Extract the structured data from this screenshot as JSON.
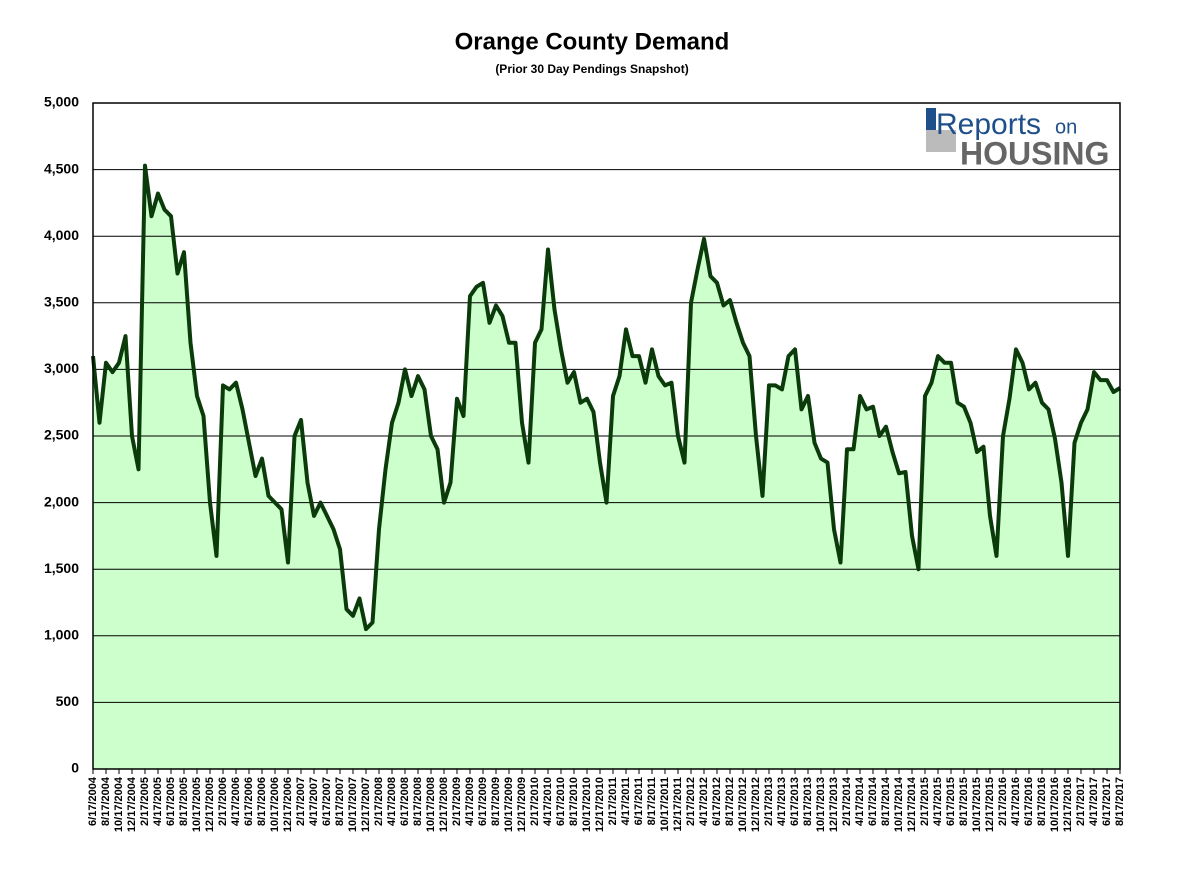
{
  "chart_data": {
    "type": "area",
    "title": "Orange County Demand",
    "subtitle": "(Prior 30 Day Pendings Snapshot)",
    "logo": {
      "word1": "Reports",
      "word2": "on",
      "word3": "HOUSING"
    },
    "categories": [
      "6/17/2004",
      null,
      "8/17/2004",
      null,
      "10/17/2004",
      null,
      "12/17/2004",
      null,
      "2/17/2005",
      null,
      "4/17/2005",
      null,
      "6/17/2005",
      null,
      "8/17/2005",
      null,
      "10/17/2005",
      null,
      "12/17/2005",
      null,
      "2/17/2006",
      null,
      "4/17/2006",
      null,
      "6/17/2006",
      null,
      "8/17/2006",
      null,
      "10/17/2006",
      null,
      "12/17/2006",
      null,
      "2/17/2007",
      null,
      "4/17/2007",
      null,
      "6/17/2007",
      null,
      "8/17/2007",
      null,
      "10/17/2007",
      null,
      "12/17/2007",
      null,
      "2/17/2008",
      null,
      "4/17/2008",
      null,
      "6/17/2008",
      null,
      "8/17/2008",
      null,
      "10/17/2008",
      null,
      "12/17/2008",
      null,
      "2/17/2009",
      null,
      "4/17/2009",
      null,
      "6/17/2009",
      null,
      "8/17/2009",
      null,
      "10/17/2009",
      null,
      "12/17/2009",
      null,
      "2/17/2010",
      null,
      "4/17/2010",
      null,
      "6/17/2010",
      null,
      "8/17/2010",
      null,
      "10/17/2010",
      null,
      "12/17/2010",
      null,
      "2/17/2011",
      null,
      "4/17/2011",
      null,
      "6/17/2011",
      null,
      "8/17/2011",
      null,
      "10/17/2011",
      null,
      "12/17/2011",
      null,
      "2/17/2012",
      null,
      "4/17/2012",
      null,
      "6/17/2012",
      null,
      "8/17/2012",
      null,
      "10/17/2012",
      null,
      "12/17/2012",
      null,
      "2/17/2013",
      null,
      "4/17/2013",
      null,
      "6/17/2013",
      null,
      "8/17/2013",
      null,
      "10/17/2013",
      null,
      "12/17/2013",
      null,
      "2/17/2014",
      null,
      "4/17/2014",
      null,
      "6/17/2014",
      null,
      "8/17/2014",
      null,
      "10/17/2014",
      null,
      "12/17/2014",
      null,
      "2/17/2015",
      null,
      "4/17/2015",
      null,
      "6/17/2015",
      null,
      "8/17/2015",
      null,
      "10/17/2015",
      null,
      "12/17/2015",
      null,
      "2/17/2016",
      null,
      "4/17/2016",
      null,
      "6/17/2016",
      null,
      "8/17/2016",
      null,
      "10/17/2016",
      null,
      "12/17/2016",
      null,
      "2/17/2017",
      null,
      "4/17/2017",
      null,
      "6/17/2017",
      null,
      "8/17/2017"
    ],
    "values": [
      3100,
      2600,
      3050,
      2980,
      3050,
      3250,
      2500,
      2250,
      4530,
      4150,
      4320,
      4200,
      4150,
      3720,
      3880,
      3200,
      2800,
      2650,
      2000,
      1600,
      2880,
      2850,
      2900,
      2700,
      2450,
      2200,
      2330,
      2050,
      2000,
      1950,
      1550,
      2500,
      2620,
      2150,
      1900,
      2000,
      1900,
      1800,
      1650,
      1200,
      1150,
      1280,
      1050,
      1100,
      1800,
      2250,
      2600,
      2750,
      3000,
      2800,
      2950,
      2850,
      2500,
      2400,
      2000,
      2150,
      2780,
      2650,
      3550,
      3620,
      3650,
      3350,
      3480,
      3400,
      3200,
      3200,
      2600,
      2300,
      3200,
      3300,
      3900,
      3450,
      3150,
      2900,
      2980,
      2750,
      2780,
      2680,
      2300,
      2000,
      2800,
      2950,
      3300,
      3100,
      3100,
      2900,
      3150,
      2950,
      2880,
      2900,
      2500,
      2300,
      3500,
      3750,
      3980,
      3700,
      3650,
      3480,
      3520,
      3350,
      3200,
      3100,
      2500,
      2050,
      2880,
      2880,
      2850,
      3100,
      3150,
      2700,
      2800,
      2450,
      2330,
      2300,
      1800,
      1550,
      2400,
      2400,
      2800,
      2700,
      2720,
      2500,
      2570,
      2380,
      2220,
      2230,
      1750,
      1500,
      2800,
      2900,
      3100,
      3050,
      3050,
      2750,
      2720,
      2600,
      2380,
      2420,
      1900,
      1600,
      2500,
      2780,
      3150,
      3050,
      2850,
      2900,
      2750,
      2700,
      2480,
      2150,
      1600,
      2450,
      2600,
      2700,
      2980,
      2920,
      2920,
      2830,
      2860
    ],
    "color": "#ccffcc",
    "line_color": "#0b3b0b",
    "ylim": [
      0,
      5000
    ],
    "yticks": [
      0,
      500,
      {
        "value": 1000,
        "label": "1,000"
      },
      {
        "value": 1500,
        "label": "1,500"
      },
      {
        "value": 2000,
        "label": "2,000"
      },
      {
        "value": 2500,
        "label": "2,500"
      },
      {
        "value": 3000,
        "label": "3,000"
      },
      {
        "value": 3500,
        "label": "3,500"
      },
      {
        "value": 4000,
        "label": "4,000"
      },
      {
        "value": 4500,
        "label": "4,500"
      },
      {
        "value": 5000,
        "label": "5,000"
      }
    ],
    "grid": true
  }
}
